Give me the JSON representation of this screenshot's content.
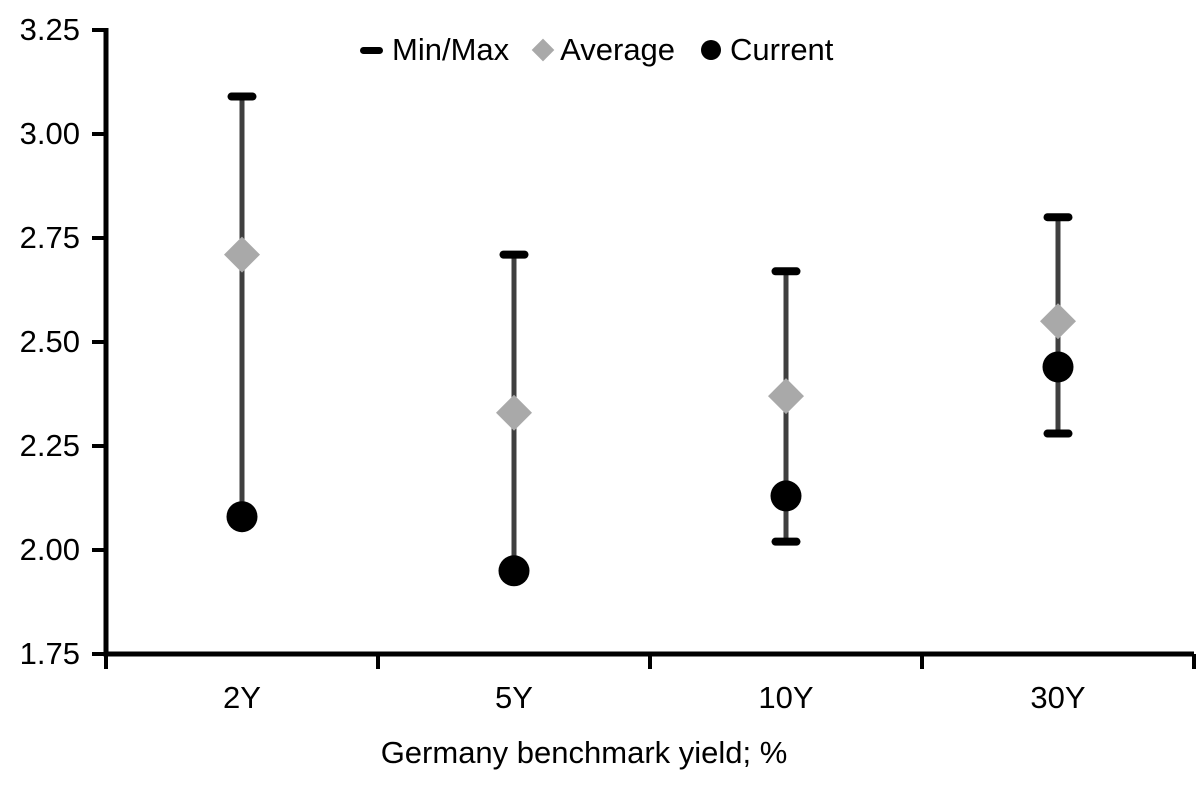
{
  "chart_data": {
    "type": "scatter",
    "title": "",
    "xlabel": "Germany benchmark yield; %",
    "ylabel": "",
    "categories": [
      "2Y",
      "5Y",
      "10Y",
      "30Y"
    ],
    "series": [
      {
        "name": "Min/Max",
        "marker": "dash",
        "min": [
          2.08,
          1.95,
          2.02,
          2.28
        ],
        "max": [
          3.09,
          2.71,
          2.67,
          2.8
        ]
      },
      {
        "name": "Average",
        "marker": "diamond",
        "values": [
          2.71,
          2.33,
          2.37,
          2.55
        ]
      },
      {
        "name": "Current",
        "marker": "circle",
        "values": [
          2.08,
          1.95,
          2.13,
          2.44
        ]
      }
    ],
    "ylim": [
      1.75,
      3.25
    ],
    "yticks": [
      3.25,
      3.0,
      2.75,
      2.5,
      2.25,
      2.0,
      1.75
    ],
    "ytick_labels": [
      "3.25",
      "3.00",
      "2.75",
      "2.50",
      "2.25",
      "2.00",
      "1.75"
    ],
    "grid": false,
    "legend_position": "top-center"
  },
  "legend": {
    "items": [
      {
        "label": "Min/Max",
        "marker": "dash"
      },
      {
        "label": "Average",
        "marker": "diamond"
      },
      {
        "label": "Current",
        "marker": "circle"
      }
    ]
  },
  "colors": {
    "background": "#ffffff",
    "axis": "#000000",
    "text": "#000000",
    "whisker": "#3f3f3f",
    "minmax_cap": "#000000",
    "average": "#a9a9a9",
    "current": "#000000"
  }
}
